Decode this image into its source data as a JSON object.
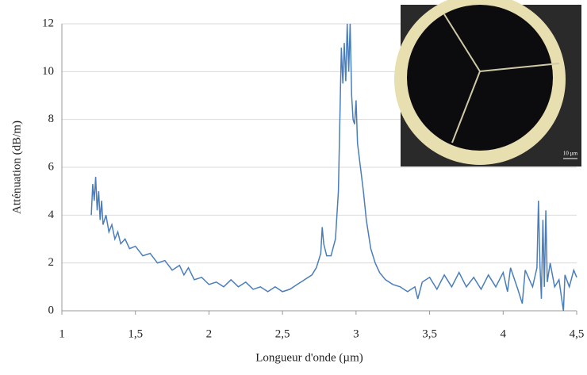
{
  "chart_data": {
    "type": "line",
    "xlabel": "Longueur d'onde (µm)",
    "ylabel": "Atténuation (dB/m)",
    "inset_label": "10 µm",
    "xlim": [
      1,
      4.5
    ],
    "xticks": [
      1,
      {
        "value": 1.5,
        "label": "1,5"
      },
      2,
      {
        "value": 2.5,
        "label": "2,5"
      },
      3,
      {
        "value": 3.5,
        "label": "3,5"
      },
      4,
      {
        "value": 4.5,
        "label": "4,5"
      }
    ],
    "ylim": [
      0,
      12
    ],
    "yticks": [
      0,
      2,
      4,
      6,
      8,
      10,
      12
    ],
    "grid": true,
    "series": [
      {
        "color": "#4a7ebb",
        "x": [
          1.2,
          1.21,
          1.22,
          1.23,
          1.24,
          1.25,
          1.26,
          1.27,
          1.28,
          1.3,
          1.32,
          1.34,
          1.36,
          1.38,
          1.4,
          1.43,
          1.46,
          1.5,
          1.55,
          1.6,
          1.65,
          1.7,
          1.75,
          1.8,
          1.83,
          1.86,
          1.9,
          1.95,
          2.0,
          2.05,
          2.1,
          2.15,
          2.2,
          2.25,
          2.3,
          2.35,
          2.4,
          2.45,
          2.5,
          2.55,
          2.6,
          2.65,
          2.7,
          2.73,
          2.76,
          2.77,
          2.78,
          2.8,
          2.83,
          2.86,
          2.88,
          2.9,
          2.91,
          2.92,
          2.93,
          2.94,
          2.95,
          2.96,
          2.97,
          2.98,
          2.99,
          3.0,
          3.01,
          3.03,
          3.05,
          3.07,
          3.1,
          3.13,
          3.16,
          3.2,
          3.25,
          3.3,
          3.35,
          3.4,
          3.42,
          3.45,
          3.5,
          3.55,
          3.6,
          3.65,
          3.7,
          3.75,
          3.8,
          3.85,
          3.9,
          3.95,
          4.0,
          4.03,
          4.05,
          4.1,
          4.13,
          4.15,
          4.2,
          4.23,
          4.24,
          4.25,
          4.26,
          4.27,
          4.28,
          4.29,
          4.3,
          4.32,
          4.35,
          4.38,
          4.4,
          4.41,
          4.42,
          4.45,
          4.48,
          4.5
        ],
        "values": [
          4.0,
          5.3,
          4.6,
          5.6,
          4.2,
          5.0,
          3.8,
          4.6,
          3.6,
          4.0,
          3.3,
          3.6,
          3.0,
          3.3,
          2.8,
          3.0,
          2.6,
          2.7,
          2.3,
          2.4,
          2.0,
          2.1,
          1.7,
          1.9,
          1.5,
          1.8,
          1.3,
          1.4,
          1.1,
          1.2,
          1.0,
          1.3,
          1.0,
          1.2,
          0.9,
          1.0,
          0.8,
          1.0,
          0.8,
          0.9,
          1.1,
          1.3,
          1.5,
          1.8,
          2.4,
          3.5,
          2.8,
          2.3,
          2.3,
          3.0,
          5.0,
          11.0,
          9.5,
          11.2,
          9.6,
          12.0,
          10.0,
          12.0,
          9.0,
          8.0,
          7.8,
          8.8,
          7.0,
          6.0,
          5.0,
          3.8,
          2.6,
          2.0,
          1.6,
          1.3,
          1.1,
          1.0,
          0.8,
          1.0,
          0.5,
          1.2,
          1.4,
          0.9,
          1.5,
          1.0,
          1.6,
          1.0,
          1.4,
          0.9,
          1.5,
          1.0,
          1.6,
          0.8,
          1.8,
          0.9,
          0.3,
          1.7,
          1.0,
          1.8,
          4.6,
          2.0,
          0.5,
          3.8,
          1.0,
          4.2,
          1.2,
          2.0,
          1.0,
          1.3,
          0.4,
          0.0,
          1.5,
          1.0,
          1.7,
          1.4
        ]
      }
    ]
  }
}
